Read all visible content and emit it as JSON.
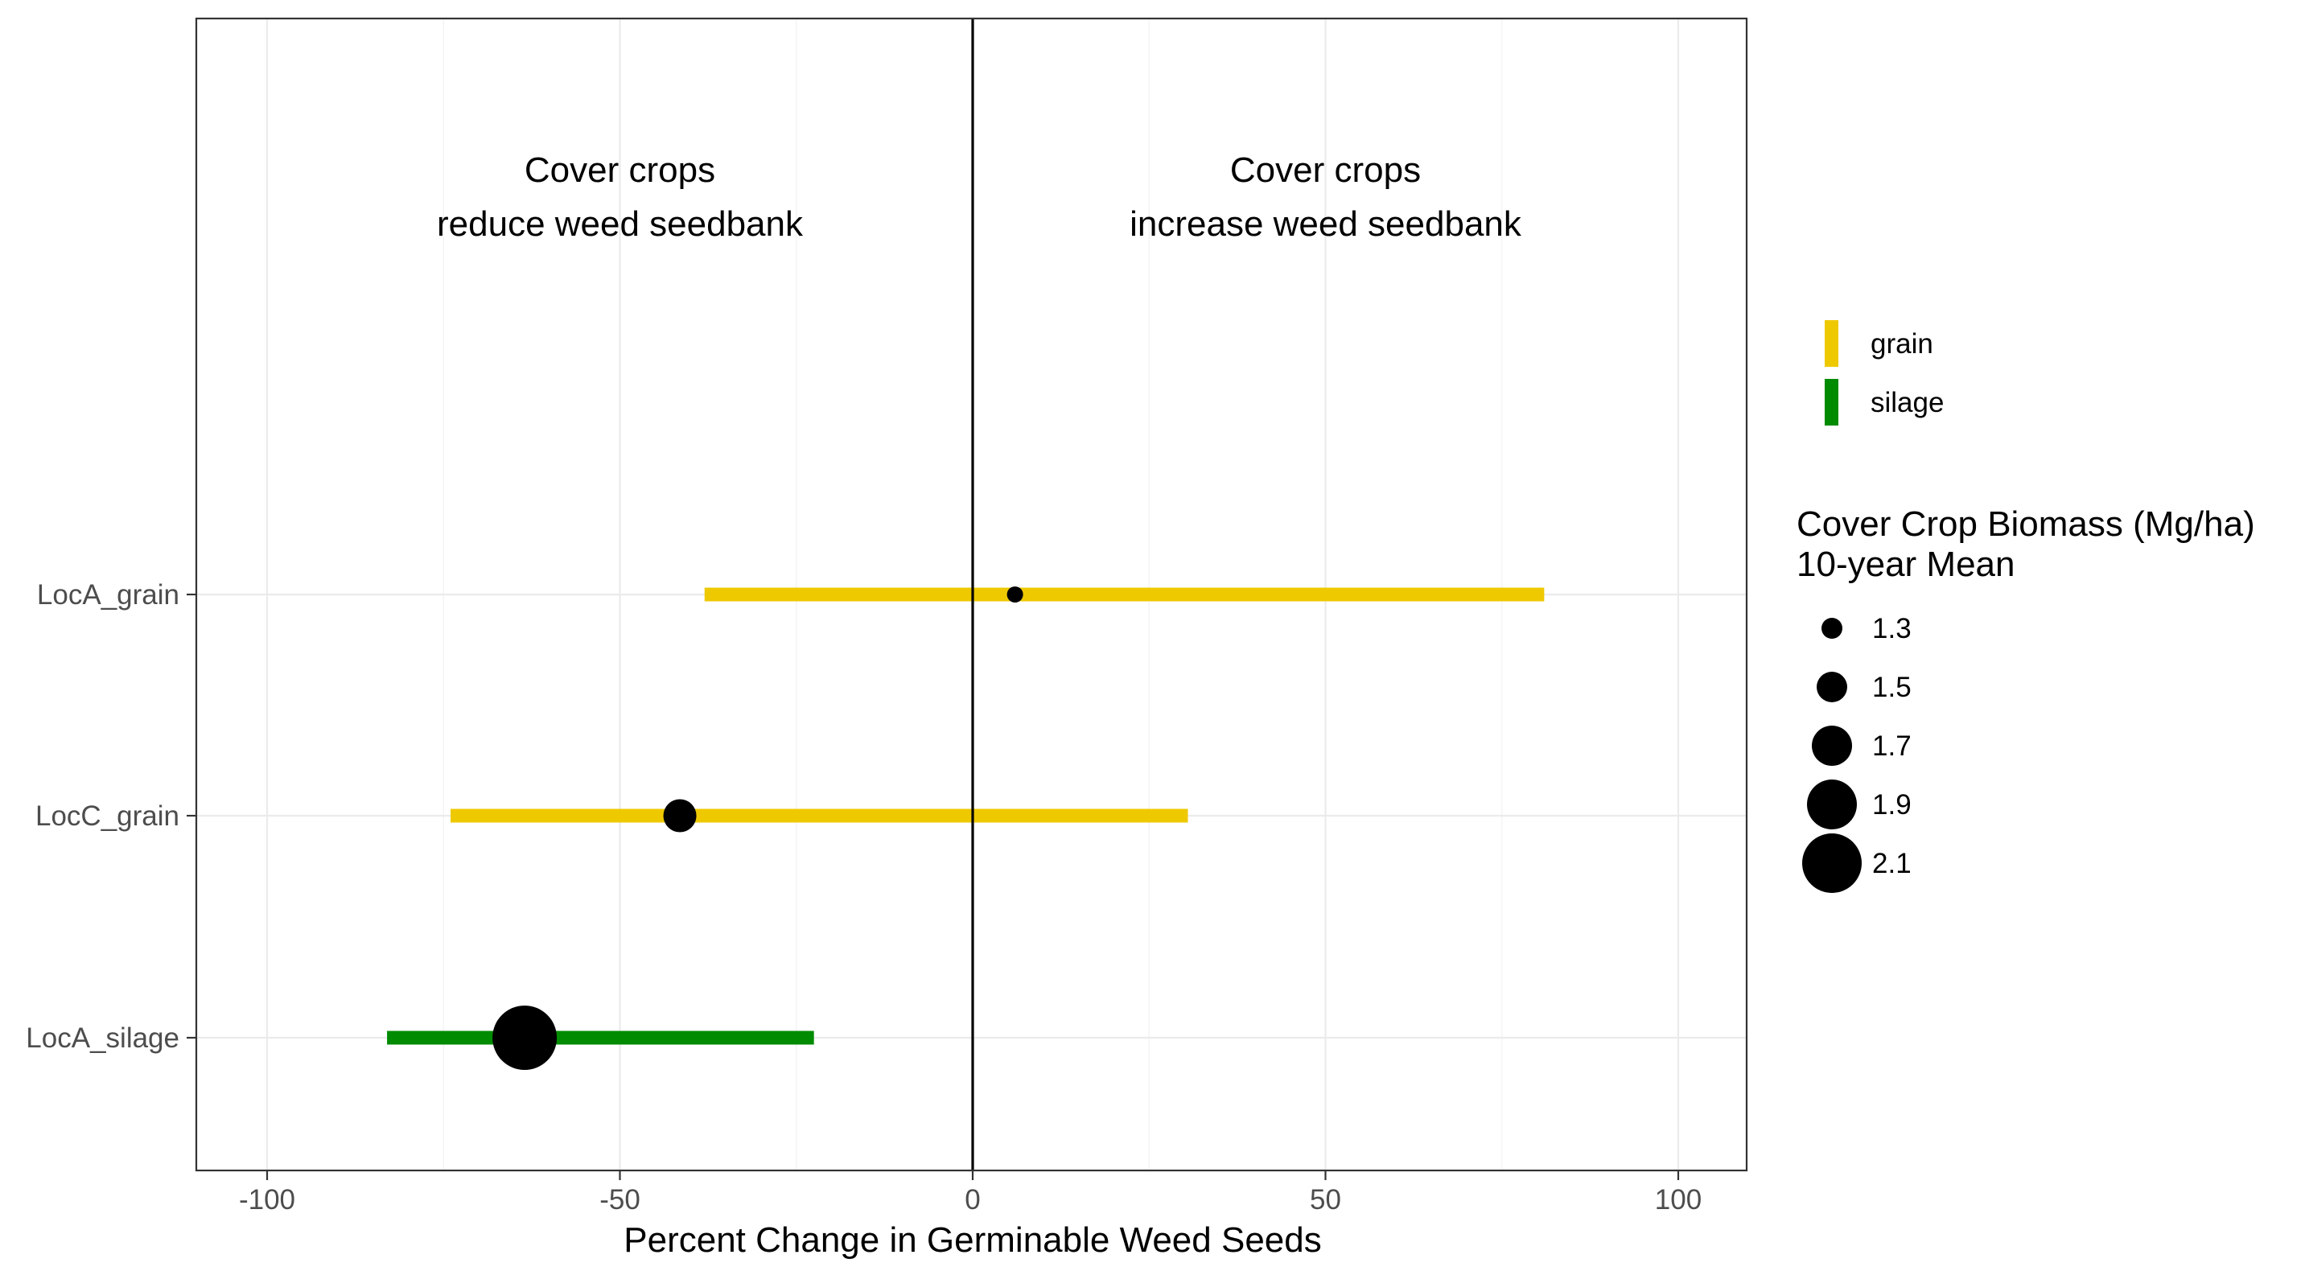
{
  "chart_data": {
    "type": "forest",
    "xlabel": "Percent Change in Germinable Weed Seeds",
    "xlim": [
      -110,
      110
    ],
    "xticks": [
      -100,
      -50,
      0,
      50,
      100
    ],
    "categories": [
      "LocA_grain",
      "LocC_grain",
      "LocA_silage"
    ],
    "rows": [
      {
        "label": "LocA_grain",
        "estimate": 6,
        "lower": -38,
        "upper": 81,
        "type": "grain",
        "biomass": 1.2
      },
      {
        "label": "LocC_grain",
        "estimate": -41.5,
        "lower": -74,
        "upper": 30.5,
        "type": "grain",
        "biomass": 1.55
      },
      {
        "label": "LocA_silage",
        "estimate": -63.5,
        "lower": -83,
        "upper": -22.5,
        "type": "silage",
        "biomass": 2.2
      }
    ],
    "reference_line": 0,
    "annotations": [
      {
        "lines": [
          "Cover crops",
          "reduce weed seedbank"
        ],
        "x": -50
      },
      {
        "lines": [
          "Cover crops",
          "increase weed seedbank"
        ],
        "x": 50
      }
    ],
    "legend_color": {
      "items": [
        {
          "label": "grain",
          "color": "#EEC900"
        },
        {
          "label": "silage",
          "color": "#008B00"
        }
      ]
    },
    "legend_size": {
      "title_lines": [
        "Cover Crop Biomass (Mg/ha)",
        "10-year Mean"
      ],
      "items": [
        {
          "label": "1.3",
          "value": 1.3
        },
        {
          "label": "1.5",
          "value": 1.5
        },
        {
          "label": "1.7",
          "value": 1.7
        },
        {
          "label": "1.9",
          "value": 1.9
        },
        {
          "label": "2.1",
          "value": 2.1
        }
      ]
    },
    "grid": true,
    "legend_position": "right"
  }
}
